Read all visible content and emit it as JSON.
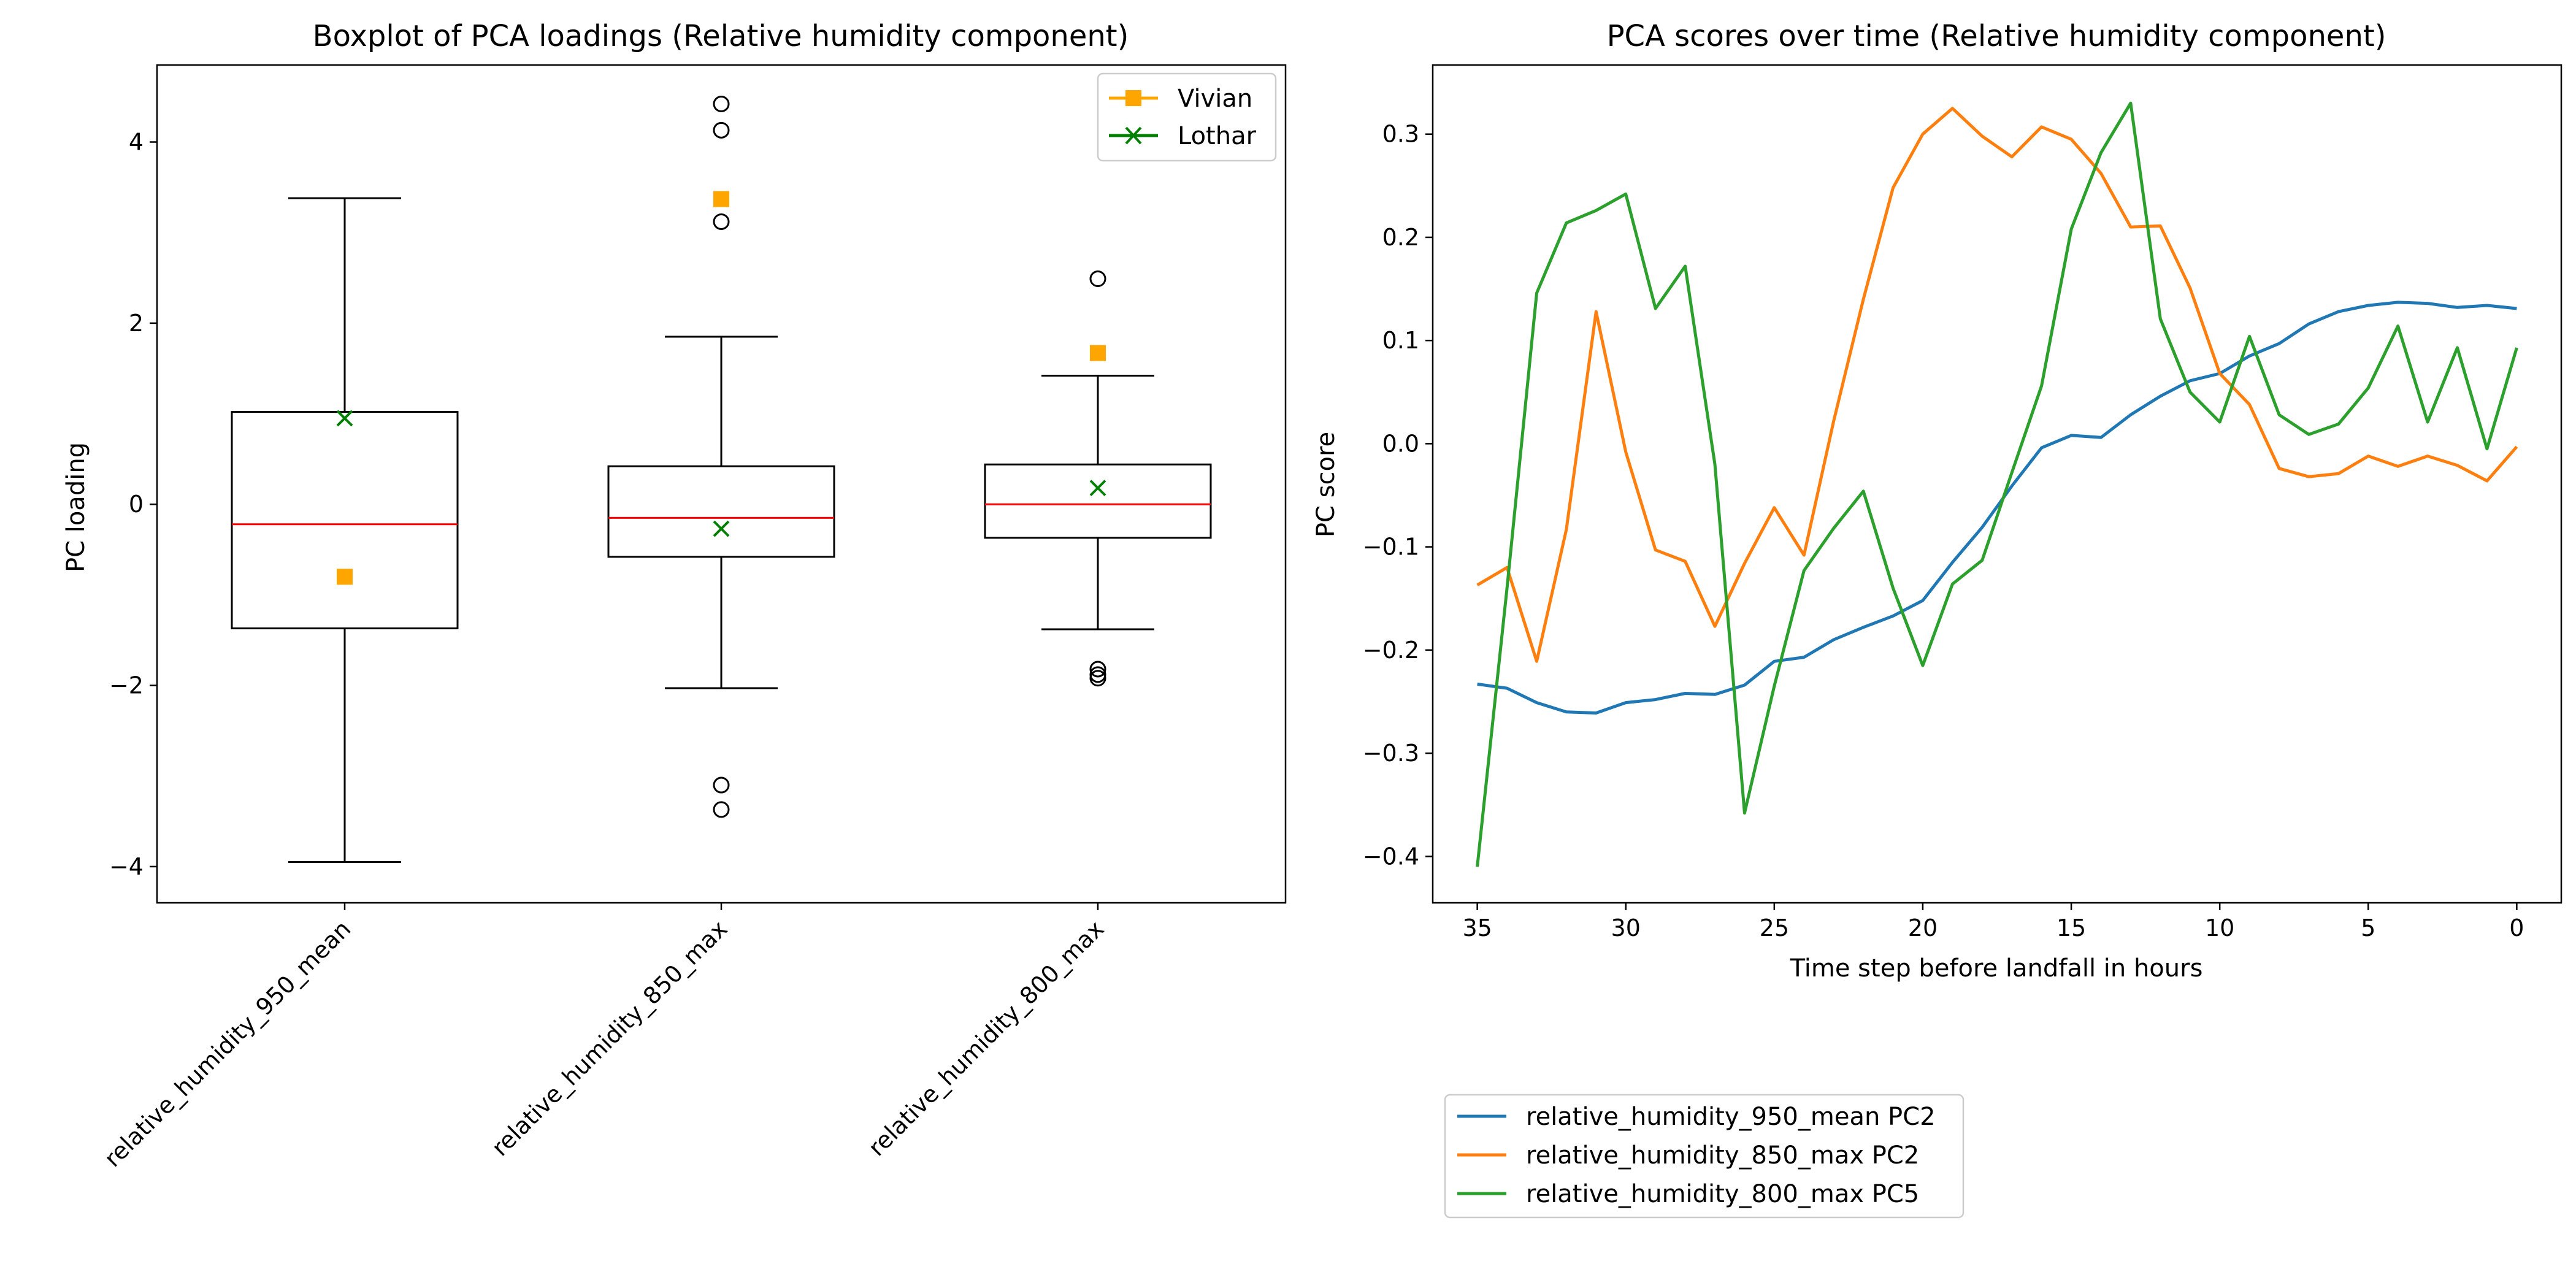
{
  "chart_data": [
    {
      "type": "boxplot",
      "title": "Boxplot of PCA loadings (Relative humidity component)",
      "xlabel": "",
      "ylabel": "PC loading",
      "ylim": [
        -4.4,
        4.85
      ],
      "yticks": [
        -4,
        -2,
        0,
        2,
        4
      ],
      "ytick_labels": [
        "−4",
        "−2",
        "0",
        "2",
        "4"
      ],
      "categories": [
        "relative_humidity_950_mean",
        "relative_humidity_850_max",
        "relative_humidity_800_max"
      ],
      "boxes": [
        {
          "whisker_low": -3.95,
          "q1": -1.37,
          "median": -0.22,
          "q3": 1.02,
          "whisker_high": 3.38,
          "outliers": []
        },
        {
          "whisker_low": -2.03,
          "q1": -0.58,
          "median": -0.15,
          "q3": 0.42,
          "whisker_high": 1.85,
          "outliers": [
            4.42,
            4.13,
            3.12,
            -3.1,
            -3.37
          ]
        },
        {
          "whisker_low": -1.38,
          "q1": -0.37,
          "median": 0.0,
          "q3": 0.44,
          "whisker_high": 1.42,
          "outliers": [
            2.49,
            -1.82,
            -1.88,
            -1.92
          ]
        }
      ],
      "markers": [
        {
          "name": "Vivian",
          "color": "#ffa500",
          "symbol": "square",
          "values": [
            -0.8,
            3.37,
            1.67
          ]
        },
        {
          "name": "Lothar",
          "color": "#008000",
          "symbol": "x",
          "values": [
            0.95,
            -0.27,
            0.18
          ]
        }
      ],
      "legend": {
        "placement": "top-right",
        "entries": [
          "Vivian",
          "Lothar"
        ]
      },
      "grid": false
    },
    {
      "type": "line",
      "title": "PCA scores over time (Relative humidity component)",
      "xlabel": "Time step before landfall in hours",
      "ylabel": "PC score",
      "xlim": [
        36.5,
        -1.5
      ],
      "ylim": [
        -0.445,
        0.367
      ],
      "xticks": [
        35,
        30,
        25,
        20,
        15,
        10,
        5,
        0
      ],
      "yticks": [
        -0.4,
        -0.3,
        -0.2,
        -0.1,
        0.0,
        0.1,
        0.2,
        0.3
      ],
      "ytick_labels": [
        "−0.4",
        "−0.3",
        "−0.2",
        "−0.1",
        "0.0",
        "0.1",
        "0.2",
        "0.3"
      ],
      "x": [
        35,
        34,
        33,
        32,
        31,
        30,
        29,
        28,
        27,
        26,
        25,
        24,
        23,
        22,
        21,
        20,
        19,
        18,
        17,
        16,
        15,
        14,
        13,
        12,
        11,
        10,
        9,
        8,
        7,
        6,
        5,
        4,
        3,
        2,
        1,
        0
      ],
      "series": [
        {
          "name": "relative_humidity_950_mean PC2",
          "color": "#1f77b4",
          "values": [
            -0.233,
            -0.237,
            -0.251,
            -0.26,
            -0.261,
            -0.251,
            -0.248,
            -0.242,
            -0.243,
            -0.234,
            -0.211,
            -0.207,
            -0.19,
            -0.178,
            -0.167,
            -0.152,
            -0.115,
            -0.081,
            -0.041,
            -0.004,
            0.008,
            0.006,
            0.028,
            0.046,
            0.061,
            0.068,
            0.085,
            0.097,
            0.116,
            0.128,
            0.134,
            0.137,
            0.136,
            0.132,
            0.134,
            0.131
          ]
        },
        {
          "name": "relative_humidity_850_max PC2",
          "color": "#ff7f0e",
          "values": [
            -0.137,
            -0.12,
            -0.211,
            -0.083,
            0.128,
            -0.008,
            -0.103,
            -0.114,
            -0.177,
            -0.116,
            -0.062,
            -0.108,
            0.022,
            0.14,
            0.248,
            0.3,
            0.325,
            0.298,
            0.278,
            0.307,
            0.295,
            0.262,
            0.21,
            0.211,
            0.151,
            0.068,
            0.038,
            -0.024,
            -0.032,
            -0.029,
            -0.012,
            -0.022,
            -0.012,
            -0.021,
            -0.036,
            -0.003
          ]
        },
        {
          "name": "relative_humidity_800_max PC5",
          "color": "#2ca02c",
          "values": [
            -0.41,
            -0.14,
            0.146,
            0.214,
            0.226,
            0.242,
            0.131,
            0.172,
            -0.02,
            -0.358,
            -0.235,
            -0.123,
            -0.082,
            -0.046,
            -0.14,
            -0.215,
            -0.136,
            -0.113,
            -0.028,
            0.056,
            0.208,
            0.282,
            0.33,
            0.121,
            0.05,
            0.021,
            0.104,
            0.028,
            0.009,
            0.019,
            0.054,
            0.114,
            0.021,
            0.093,
            -0.005,
            0.093
          ]
        }
      ],
      "legend": {
        "placement": "below-left",
        "entries": [
          "relative_humidity_950_mean PC2",
          "relative_humidity_850_max PC2",
          "relative_humidity_800_max PC5"
        ]
      },
      "grid": false
    }
  ]
}
